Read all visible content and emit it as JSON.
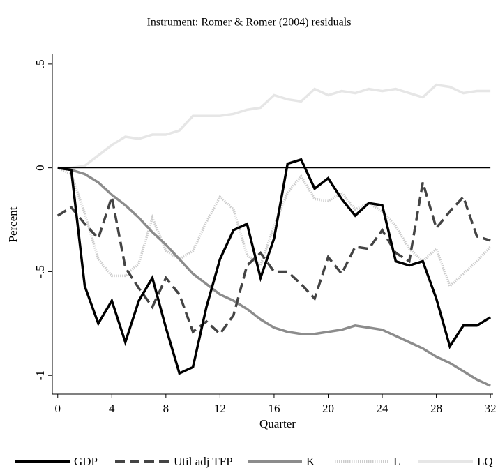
{
  "chart_data": {
    "type": "line",
    "title": "Instrument: Romer & Romer (2004) residuals",
    "xlabel": "Quarter",
    "ylabel": "Percent",
    "x": [
      0,
      1,
      2,
      3,
      4,
      5,
      6,
      7,
      8,
      9,
      10,
      11,
      12,
      13,
      14,
      15,
      16,
      17,
      18,
      19,
      20,
      21,
      22,
      23,
      24,
      25,
      26,
      27,
      28,
      29,
      30,
      31,
      32
    ],
    "xlim": [
      -0.4,
      32.2
    ],
    "xticks": [
      0,
      4,
      8,
      12,
      16,
      20,
      24,
      28,
      32
    ],
    "ylim": [
      -1.09,
      0.55
    ],
    "yticks": [
      -1,
      {
        "value": -0.5,
        "label": "-.5"
      },
      0,
      {
        "value": 0.5,
        "label": ".5"
      }
    ],
    "hline": 0,
    "legend": "bottom",
    "series": [
      {
        "name": "GDP",
        "color": "#000000",
        "style": "solid",
        "values": [
          0,
          -0.01,
          -0.57,
          -0.75,
          -0.64,
          -0.84,
          -0.64,
          -0.53,
          -0.77,
          -0.99,
          -0.96,
          -0.67,
          -0.44,
          -0.3,
          -0.27,
          -0.53,
          -0.34,
          0.02,
          0.04,
          -0.1,
          -0.05,
          -0.15,
          -0.23,
          -0.17,
          -0.18,
          -0.45,
          -0.47,
          -0.45,
          -0.63,
          -0.86,
          -0.76,
          -0.76,
          -0.72
        ]
      },
      {
        "name": "Util adj TFP",
        "color": "#444444",
        "style": "dashed",
        "values": [
          -0.23,
          -0.19,
          -0.27,
          -0.34,
          -0.14,
          -0.48,
          -0.58,
          -0.67,
          -0.53,
          -0.61,
          -0.79,
          -0.74,
          -0.8,
          -0.71,
          -0.47,
          -0.41,
          -0.5,
          -0.5,
          -0.56,
          -0.63,
          -0.43,
          -0.51,
          -0.38,
          -0.39,
          -0.3,
          -0.41,
          -0.45,
          -0.07,
          -0.29,
          -0.21,
          -0.14,
          -0.33,
          -0.35
        ]
      },
      {
        "name": "K",
        "color": "#8c8c8c",
        "style": "solid",
        "values": [
          0,
          -0.01,
          -0.03,
          -0.07,
          -0.13,
          -0.18,
          -0.24,
          -0.31,
          -0.37,
          -0.44,
          -0.51,
          -0.56,
          -0.61,
          -0.64,
          -0.68,
          -0.73,
          -0.77,
          -0.79,
          -0.8,
          -0.8,
          -0.79,
          -0.78,
          -0.76,
          -0.77,
          -0.78,
          -0.81,
          -0.84,
          -0.87,
          -0.91,
          -0.94,
          -0.98,
          -1.02,
          -1.05
        ]
      },
      {
        "name": "L",
        "color": "#cccccc",
        "style": "dotted",
        "values": [
          0,
          -0.03,
          -0.22,
          -0.44,
          -0.52,
          -0.52,
          -0.46,
          -0.24,
          -0.4,
          -0.44,
          -0.4,
          -0.26,
          -0.14,
          -0.2,
          -0.42,
          -0.47,
          -0.28,
          -0.12,
          -0.04,
          -0.15,
          -0.16,
          -0.12,
          -0.2,
          -0.17,
          -0.21,
          -0.28,
          -0.39,
          -0.45,
          -0.39,
          -0.57,
          -0.51,
          -0.45,
          -0.38
        ]
      },
      {
        "name": "LQ",
        "color": "#e6e6e6",
        "style": "solid",
        "values": [
          0,
          0,
          0.01,
          0.06,
          0.11,
          0.15,
          0.14,
          0.16,
          0.16,
          0.18,
          0.25,
          0.25,
          0.25,
          0.26,
          0.28,
          0.29,
          0.35,
          0.33,
          0.32,
          0.38,
          0.35,
          0.37,
          0.36,
          0.38,
          0.37,
          0.38,
          0.36,
          0.34,
          0.4,
          0.39,
          0.36,
          0.37,
          0.37
        ]
      }
    ]
  }
}
